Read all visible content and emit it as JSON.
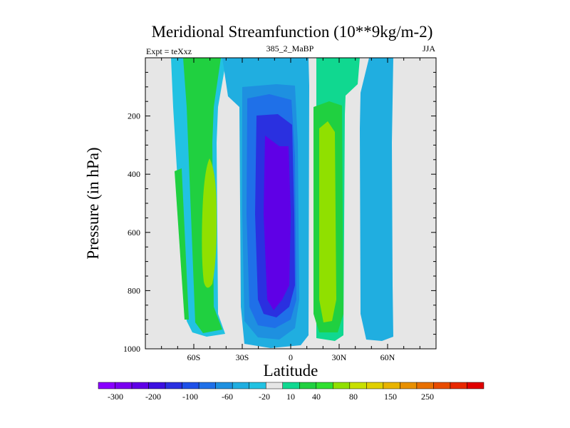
{
  "chart_data": {
    "type": "contour",
    "title": "Meridional Streamfunction (10**9kg/m-2)",
    "left_label": "Expt = teXxz",
    "center_label": "385_2_MaBP",
    "right_label": "JJA",
    "xlabel": "Latitude",
    "ylabel": "Pressure (in hPa)",
    "xlim": [
      -90,
      90
    ],
    "ylim": [
      1000,
      0
    ],
    "x_ticks": [
      {
        "value": -60,
        "label": "60S"
      },
      {
        "value": -30,
        "label": "30S"
      },
      {
        "value": 0,
        "label": "0"
      },
      {
        "value": 30,
        "label": "30N"
      },
      {
        "value": 60,
        "label": "60N"
      }
    ],
    "y_ticks": [
      {
        "value": 200,
        "label": "200"
      },
      {
        "value": 400,
        "label": "400"
      },
      {
        "value": 600,
        "label": "600"
      },
      {
        "value": 800,
        "label": "800"
      },
      {
        "value": 1000,
        "label": "1000"
      }
    ],
    "colorbar": {
      "colors": [
        "#8a00ff",
        "#7a00f0",
        "#5f00e6",
        "#3c10e0",
        "#2a30e0",
        "#1e50e8",
        "#1f70e8",
        "#1e90e0",
        "#20aee0",
        "#22c2e2",
        "#e6e6e6",
        "#10d890",
        "#20d040",
        "#30e030",
        "#90e000",
        "#c8e000",
        "#e0d000",
        "#e8b400",
        "#e89000",
        "#e87000",
        "#e84c00",
        "#e82800",
        "#e00000"
      ],
      "labels": [
        "-300",
        "-200",
        "-100",
        "-60",
        "-20",
        "10",
        "40",
        "80",
        "150",
        "250"
      ]
    },
    "regions": [
      {
        "name": "sh-outer-cell",
        "level": "10",
        "color": "#22c2e2"
      },
      {
        "name": "sh-outer-cell-core",
        "level": "20",
        "color": "#20d040"
      },
      {
        "name": "sh-outer-cell-max",
        "level": "40",
        "color": "#90e000"
      },
      {
        "name": "hadley-cell-edge",
        "level": "-20",
        "color": "#20aee0"
      },
      {
        "name": "hadley-cell",
        "level": "-60",
        "color": "#1e90e0"
      },
      {
        "name": "hadley-cell-inner",
        "level": "-100",
        "color": "#1f70e8"
      },
      {
        "name": "hadley-cell-core",
        "level": "-200",
        "color": "#2a30e0"
      },
      {
        "name": "hadley-cell-max",
        "level": "-300",
        "color": "#5f00e6"
      },
      {
        "name": "nh-ferrel-cell",
        "level": "10",
        "color": "#10d890"
      },
      {
        "name": "nh-ferrel-cell-core",
        "level": "40",
        "color": "#20d040"
      },
      {
        "name": "nh-ferrel-cell-max",
        "level": "80",
        "color": "#90e000"
      },
      {
        "name": "nh-polar-cell",
        "level": "-20",
        "color": "#20aee0"
      }
    ]
  }
}
